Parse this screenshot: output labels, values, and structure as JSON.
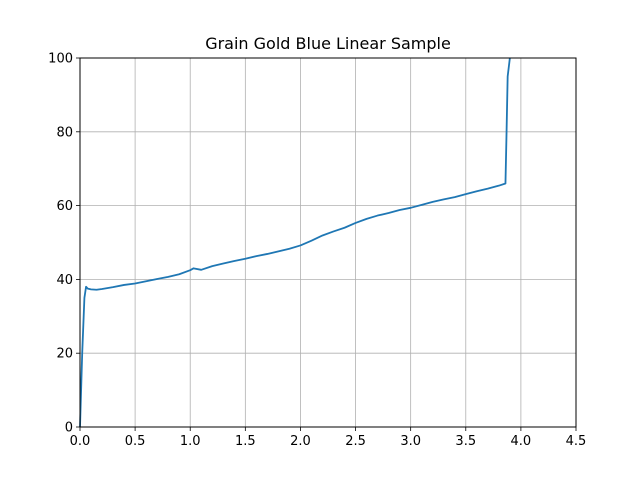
{
  "chart_data": {
    "type": "line",
    "title": "Grain Gold Blue Linear Sample",
    "xlabel": "",
    "ylabel": "",
    "xlim": [
      0,
      4.5
    ],
    "ylim": [
      0,
      100
    ],
    "x_ticks": [
      "0.0",
      "0.5",
      "1.0",
      "1.5",
      "2.0",
      "2.5",
      "3.0",
      "3.5",
      "4.0",
      "4.5"
    ],
    "y_ticks": [
      "0",
      "20",
      "40",
      "60",
      "80",
      "100"
    ],
    "grid": true,
    "legend": "none",
    "line_color": "#1f77b4",
    "series": [
      {
        "x": [
          0.0,
          0.02,
          0.04,
          0.055,
          0.07,
          0.1,
          0.15,
          0.2,
          0.3,
          0.4,
          0.5,
          0.6,
          0.7,
          0.8,
          0.9,
          1.0,
          1.03,
          1.1,
          1.2,
          1.3,
          1.4,
          1.5,
          1.6,
          1.7,
          1.8,
          1.9,
          2.0,
          2.1,
          2.2,
          2.3,
          2.4,
          2.5,
          2.6,
          2.7,
          2.8,
          2.9,
          3.0,
          3.1,
          3.2,
          3.3,
          3.4,
          3.5,
          3.6,
          3.7,
          3.8,
          3.86,
          3.87,
          3.88,
          3.9
        ],
        "y": [
          0,
          20,
          35,
          38,
          37.5,
          37.3,
          37.2,
          37.4,
          37.9,
          38.5,
          38.9,
          39.5,
          40.1,
          40.7,
          41.4,
          42.5,
          43.0,
          42.6,
          43.6,
          44.3,
          45.0,
          45.6,
          46.3,
          46.9,
          47.6,
          48.3,
          49.2,
          50.5,
          51.9,
          53.0,
          54.0,
          55.3,
          56.4,
          57.3,
          58.0,
          58.8,
          59.4,
          60.2,
          61.0,
          61.7,
          62.3,
          63.1,
          63.9,
          64.6,
          65.4,
          66.0,
          80.0,
          95.0,
          100.0
        ]
      }
    ]
  }
}
